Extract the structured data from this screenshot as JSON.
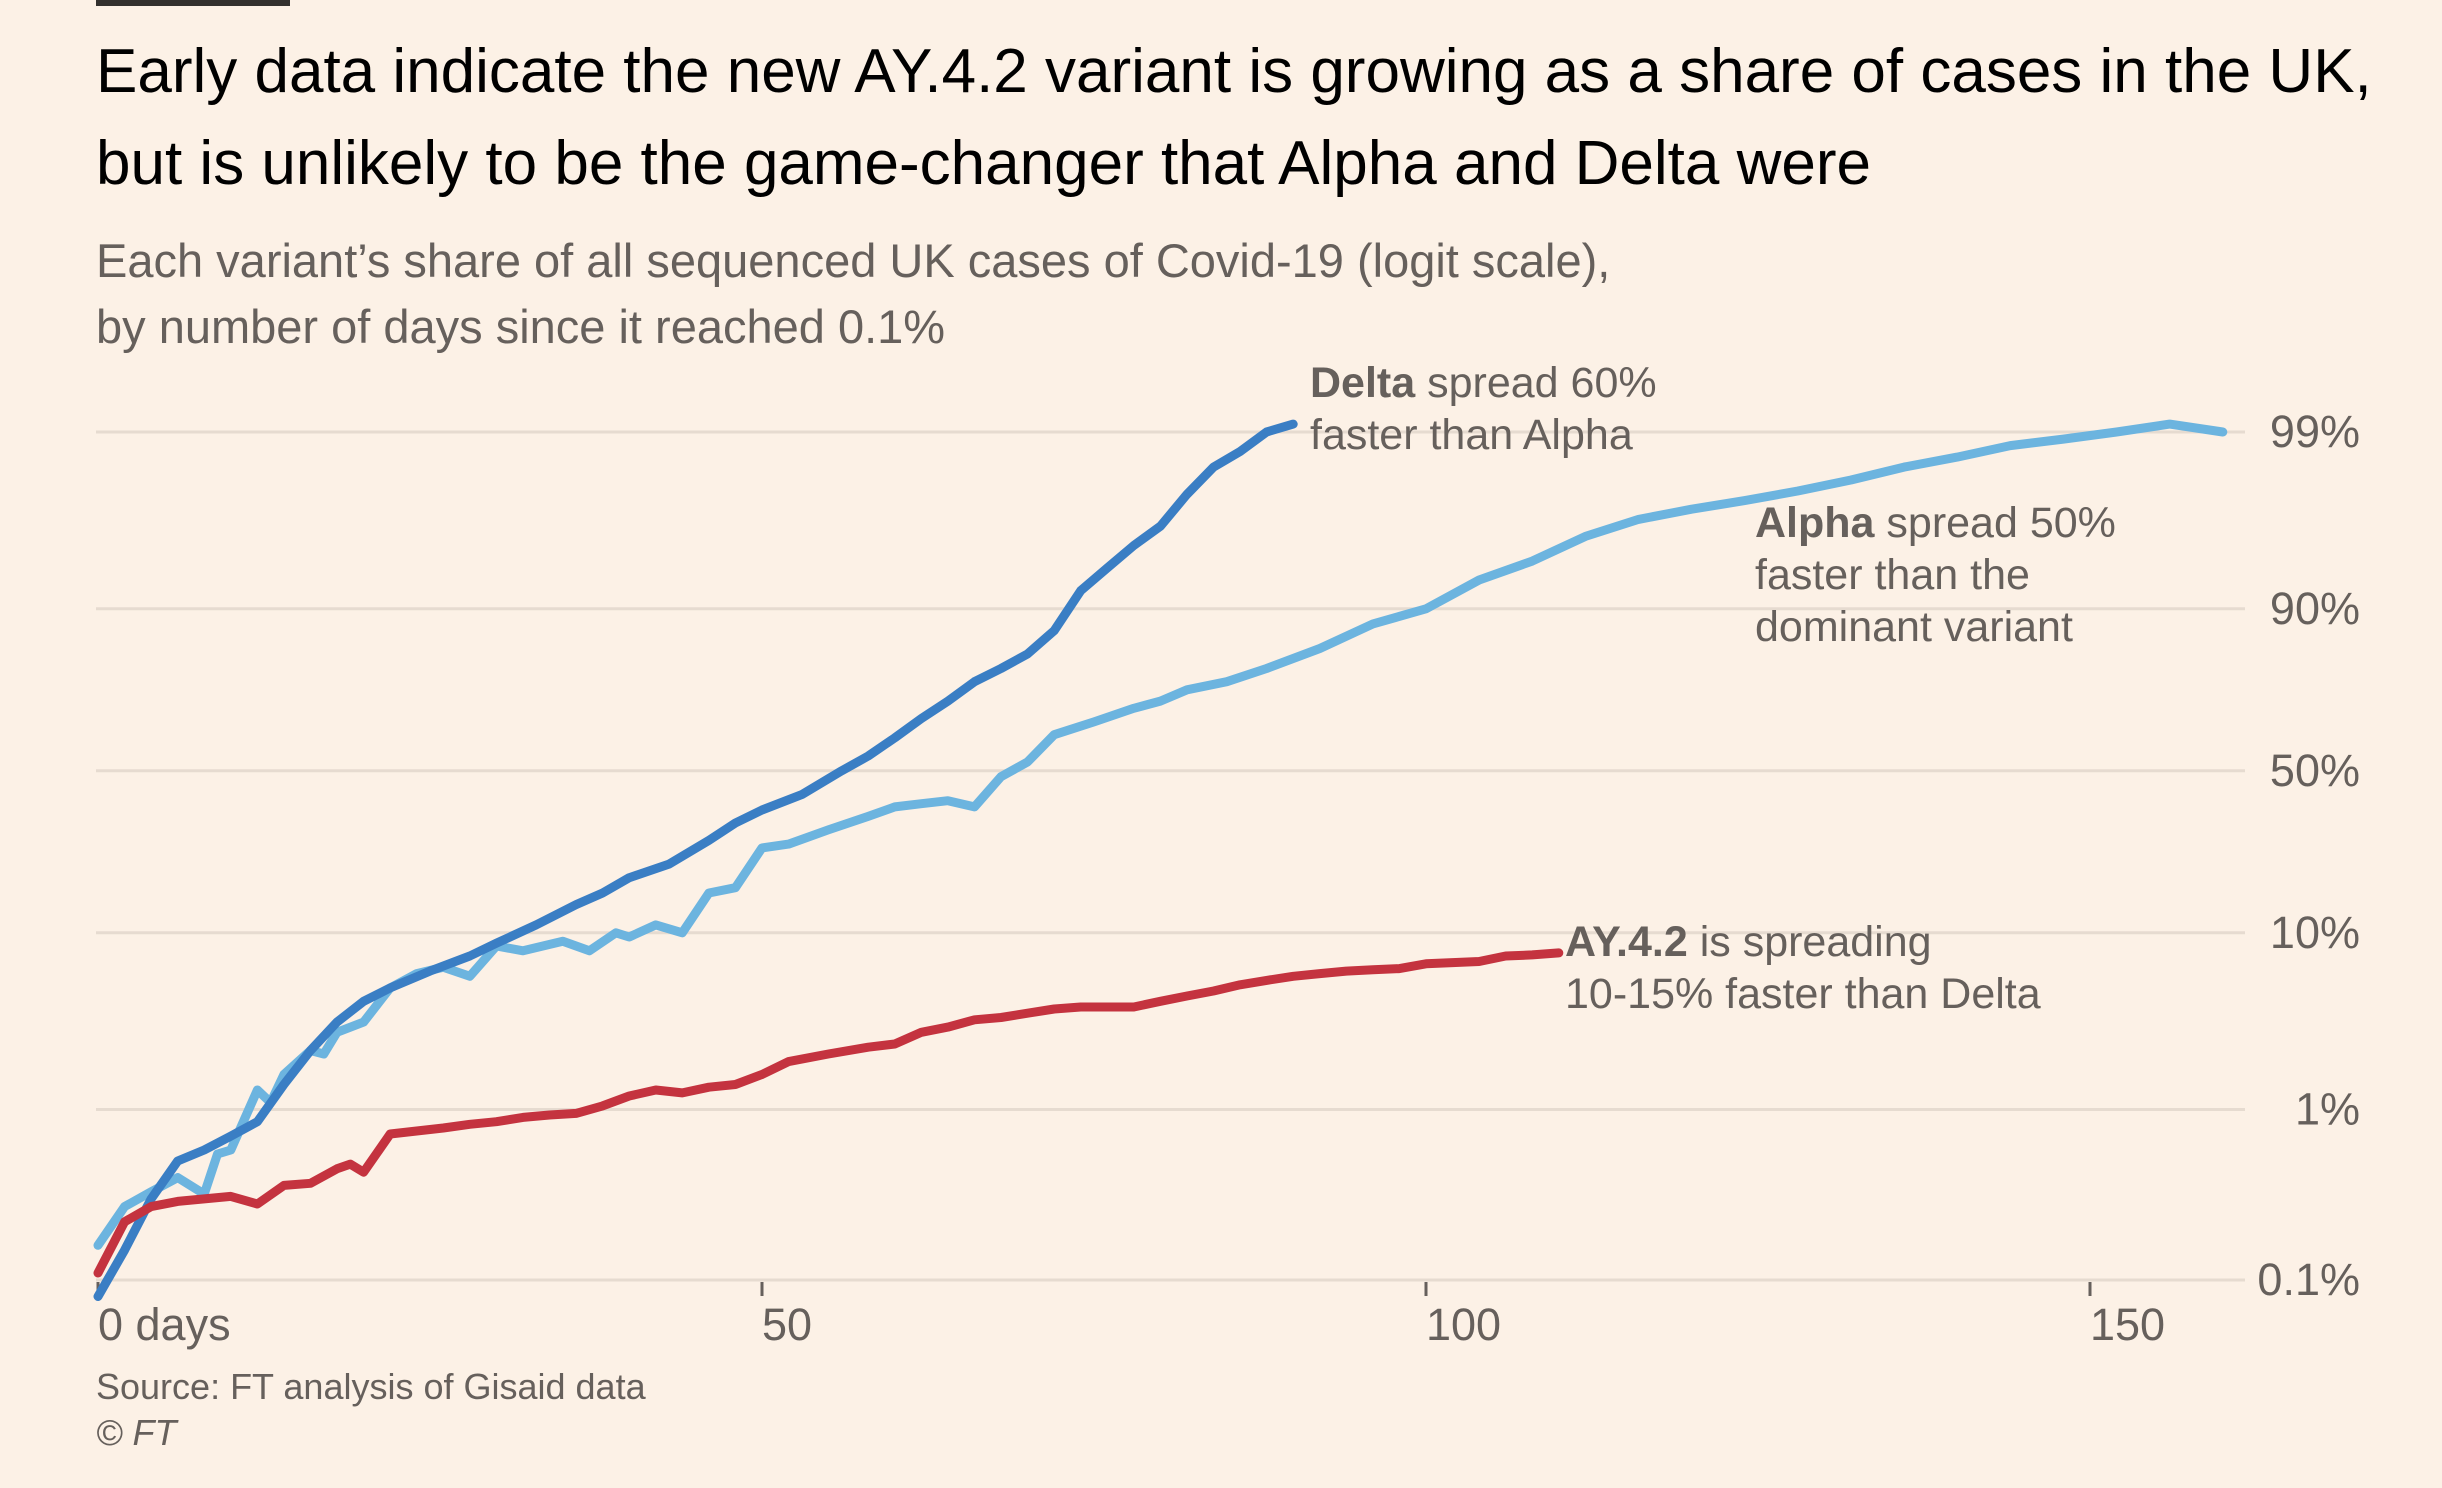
{
  "title": "Early data indicate the new AY.4.2 variant is growing as a share of cases in the UK, but is unlikely to be the game-changer that Alpha and Delta were",
  "subtitle_line1": "Each variant’s share of all sequenced UK cases of Covid-19 (logit scale),",
  "subtitle_line2": "by number of days since it reached 0.1%",
  "source": "Source: FT analysis of Gisaid data",
  "copyright": "© FT",
  "colors": {
    "background": "#fcf1e6",
    "delta": "#3a7ec4",
    "alpha": "#6cb4df",
    "ay42": "#c4333f",
    "grid": "#e6dbd0",
    "text": "#66605c"
  },
  "annotations": {
    "delta_name": "Delta",
    "delta_line1": " spread 60%",
    "delta_line2": "faster than Alpha",
    "alpha_name": "Alpha",
    "alpha_line1": " spread 50%",
    "alpha_line2": "faster than the",
    "alpha_line3": "dominant variant",
    "ay42_name": "AY.4.2",
    "ay42_line1": " is spreading",
    "ay42_line2": "10-15% faster than Delta"
  },
  "chart_data": {
    "type": "line",
    "y_scale": "logit",
    "xlim": [
      0,
      162
    ],
    "ylim": [
      0.001,
      0.994
    ],
    "x_ticks": [
      0,
      50,
      100,
      150
    ],
    "x_tick_labels": [
      "0 days",
      "50",
      "100",
      "150"
    ],
    "y_ticks": [
      0.001,
      0.01,
      0.1,
      0.5,
      0.9,
      0.99
    ],
    "y_tick_labels": [
      "0.1%",
      "1%",
      "10%",
      "50%",
      "90%",
      "99%"
    ],
    "grid": true,
    "series": [
      {
        "name": "Delta",
        "color": "#3a7ec4",
        "x": [
          0,
          2,
          4,
          6,
          8,
          10,
          12,
          14,
          16,
          18,
          20,
          22,
          25,
          28,
          30,
          33,
          36,
          38,
          40,
          43,
          46,
          48,
          50,
          53,
          56,
          58,
          60,
          62,
          64,
          66,
          68,
          70,
          72,
          74,
          76,
          78,
          80,
          82,
          84,
          86,
          88,
          90
        ],
        "y": [
          0.0008,
          0.0015,
          0.003,
          0.005,
          0.0058,
          0.007,
          0.0085,
          0.014,
          0.022,
          0.032,
          0.042,
          0.05,
          0.062,
          0.075,
          0.088,
          0.11,
          0.14,
          0.16,
          0.19,
          0.22,
          0.28,
          0.33,
          0.37,
          0.42,
          0.5,
          0.55,
          0.61,
          0.67,
          0.72,
          0.77,
          0.8,
          0.83,
          0.87,
          0.92,
          0.94,
          0.955,
          0.965,
          0.977,
          0.984,
          0.987,
          0.99,
          0.991
        ]
      },
      {
        "name": "Alpha",
        "color": "#6cb4df",
        "x": [
          0,
          2,
          4,
          6,
          8,
          9,
          10,
          12,
          13,
          14,
          16,
          17,
          18,
          20,
          22,
          24,
          26,
          28,
          30,
          32,
          35,
          37,
          39,
          40,
          42,
          44,
          46,
          48,
          50,
          52,
          55,
          58,
          60,
          62,
          64,
          66,
          68,
          70,
          72,
          75,
          78,
          80,
          82,
          85,
          88,
          92,
          96,
          100,
          104,
          108,
          112,
          116,
          120,
          124,
          128,
          132,
          136,
          140,
          144,
          148,
          152,
          156,
          160
        ],
        "y": [
          0.0016,
          0.0027,
          0.0033,
          0.004,
          0.0032,
          0.0055,
          0.0058,
          0.013,
          0.011,
          0.016,
          0.022,
          0.021,
          0.028,
          0.032,
          0.05,
          0.06,
          0.065,
          0.058,
          0.085,
          0.08,
          0.09,
          0.08,
          0.1,
          0.095,
          0.11,
          0.1,
          0.16,
          0.17,
          0.26,
          0.27,
          0.31,
          0.35,
          0.38,
          0.39,
          0.4,
          0.38,
          0.48,
          0.53,
          0.62,
          0.66,
          0.7,
          0.72,
          0.75,
          0.77,
          0.8,
          0.84,
          0.88,
          0.9,
          0.93,
          0.945,
          0.96,
          0.968,
          0.972,
          0.975,
          0.978,
          0.981,
          0.984,
          0.986,
          0.988,
          0.989,
          0.99,
          0.991,
          0.99
        ]
      },
      {
        "name": "AY.4.2",
        "color": "#c4333f",
        "x": [
          0,
          2,
          4,
          6,
          8,
          10,
          12,
          14,
          16,
          18,
          19,
          20,
          22,
          24,
          26,
          28,
          30,
          32,
          34,
          36,
          38,
          40,
          42,
          44,
          46,
          48,
          50,
          52,
          55,
          58,
          60,
          62,
          64,
          66,
          68,
          70,
          72,
          74,
          76,
          78,
          80,
          82,
          84,
          86,
          88,
          90,
          92,
          94,
          96,
          98,
          100,
          102,
          104,
          106,
          108,
          110
        ],
        "y": [
          0.0011,
          0.0022,
          0.0027,
          0.0029,
          0.003,
          0.0031,
          0.0028,
          0.0036,
          0.0037,
          0.0045,
          0.0048,
          0.0043,
          0.0072,
          0.0075,
          0.0078,
          0.0082,
          0.0085,
          0.009,
          0.0093,
          0.0095,
          0.0105,
          0.012,
          0.013,
          0.0125,
          0.0135,
          0.014,
          0.016,
          0.019,
          0.021,
          0.023,
          0.024,
          0.028,
          0.03,
          0.033,
          0.034,
          0.036,
          0.038,
          0.039,
          0.039,
          0.039,
          0.042,
          0.045,
          0.048,
          0.052,
          0.055,
          0.058,
          0.06,
          0.062,
          0.063,
          0.064,
          0.068,
          0.069,
          0.07,
          0.075,
          0.076,
          0.078
        ]
      }
    ]
  }
}
